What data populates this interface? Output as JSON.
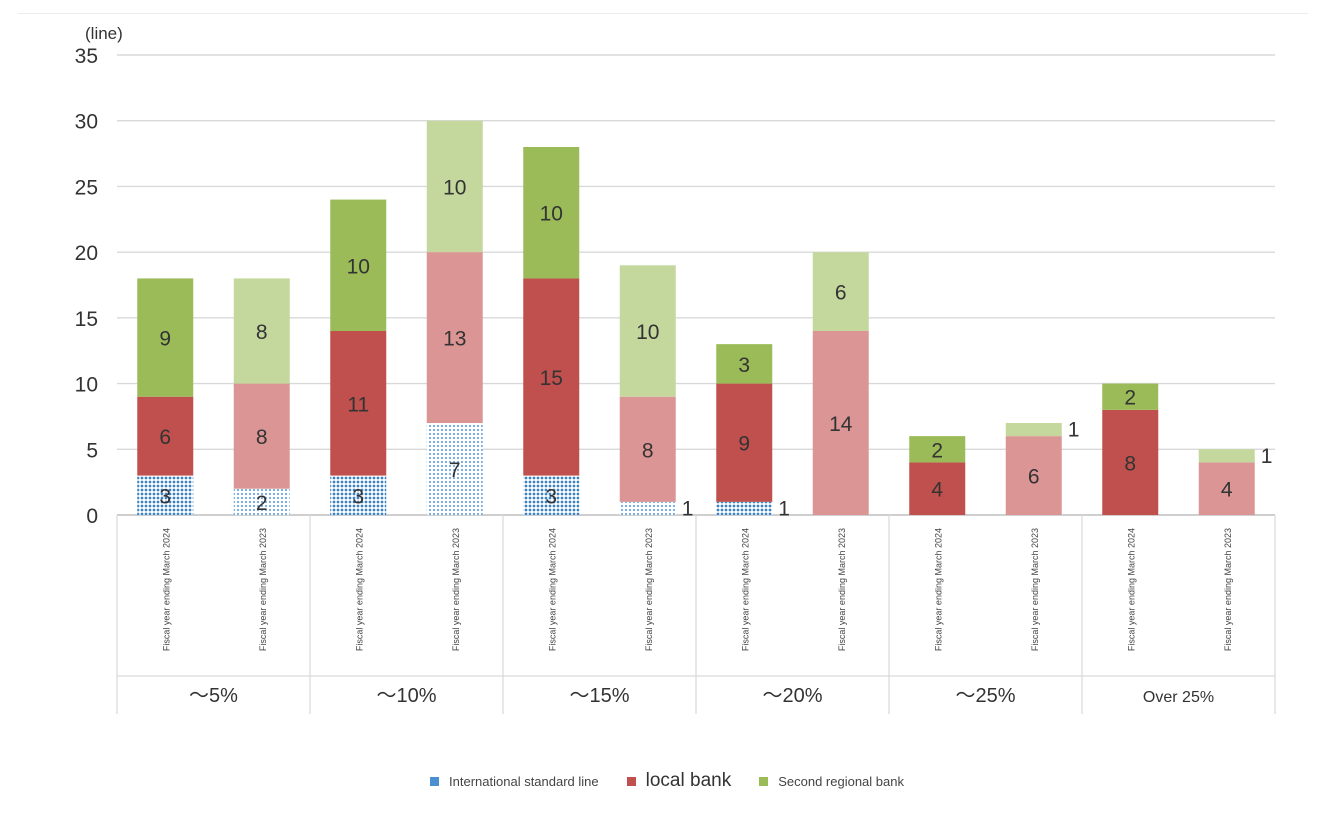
{
  "chart_data": {
    "type": "bar",
    "stacked": true,
    "unit_label": "(line)",
    "ylim": [
      0,
      35
    ],
    "yticks": [
      0,
      5,
      10,
      15,
      20,
      25,
      30,
      35
    ],
    "groups": [
      "〜5%",
      "〜10%",
      "〜15%",
      "〜20%",
      "〜25%",
      "Over 25%"
    ],
    "bar_labels": [
      "Fiscal year ending March 2024",
      "Fiscal year ending March 2023"
    ],
    "series_names": [
      "International standard line",
      "local bank",
      "Second regional bank"
    ],
    "colors": {
      "intl_2024": "#4a90d0",
      "local_2024": "#c0504d",
      "second_2024": "#9bbb59",
      "intl_2023": "#9fc5ea",
      "local_2023": "#dc9595",
      "second_2023": "#c4d89e",
      "grid": "#d9d9d9",
      "axis_text": "#333333"
    },
    "bars": [
      {
        "group": 0,
        "year": "2024",
        "values": [
          3,
          6,
          9
        ]
      },
      {
        "group": 0,
        "year": "2023",
        "values": [
          2,
          8,
          8
        ]
      },
      {
        "group": 1,
        "year": "2024",
        "values": [
          3,
          11,
          10
        ]
      },
      {
        "group": 1,
        "year": "2023",
        "values": [
          7,
          13,
          10
        ]
      },
      {
        "group": 2,
        "year": "2024",
        "values": [
          3,
          15,
          10
        ]
      },
      {
        "group": 2,
        "year": "2023",
        "values": [
          1,
          8,
          10
        ]
      },
      {
        "group": 3,
        "year": "2024",
        "values": [
          1,
          9,
          3
        ]
      },
      {
        "group": 3,
        "year": "2023",
        "values": [
          0,
          14,
          6
        ]
      },
      {
        "group": 4,
        "year": "2024",
        "values": [
          0,
          4,
          2
        ]
      },
      {
        "group": 4,
        "year": "2023",
        "values": [
          0,
          6,
          1
        ]
      },
      {
        "group": 5,
        "year": "2024",
        "values": [
          0,
          8,
          2
        ]
      },
      {
        "group": 5,
        "year": "2023",
        "values": [
          0,
          4,
          1
        ]
      }
    ]
  },
  "legend": {
    "items": [
      {
        "label": "International standard line",
        "color": "#4a90d0"
      },
      {
        "label": "local bank",
        "color": "#c0504d"
      },
      {
        "label": "Second regional bank",
        "color": "#9bbb59"
      }
    ]
  }
}
